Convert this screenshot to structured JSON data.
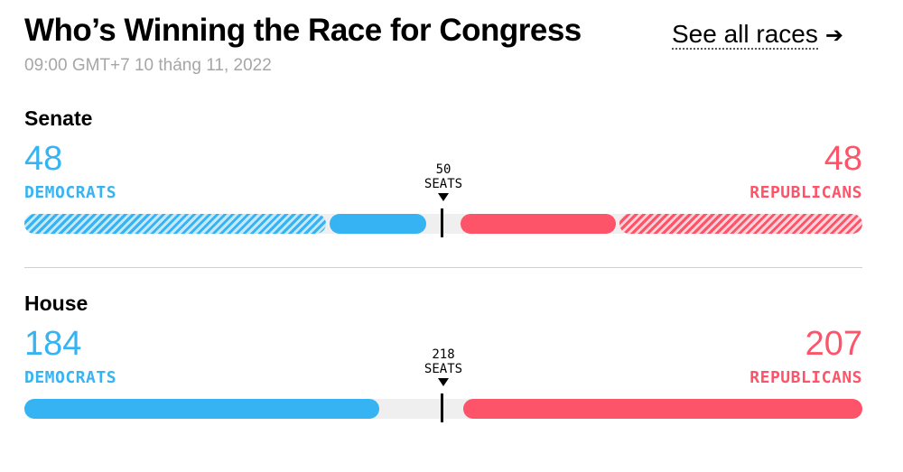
{
  "header": {
    "title": "Who’s Winning the Race for Congress",
    "timestamp": "09:00 GMT+7 10 tháng 11, 2022",
    "see_all_label": "See all races",
    "see_all_arrow": "➔"
  },
  "colors": {
    "democrat": "#36b3f2",
    "republican": "#fd5469",
    "undecided": "#efefef",
    "divider": "#d0d0d0"
  },
  "races": {
    "senate": {
      "chamber": "Senate",
      "total_seats": 100,
      "majority_value": "50",
      "majority_unit": "SEATS",
      "democrats": {
        "count": "48",
        "label": "DEMOCRATS",
        "not_up_for_election": 36,
        "won": 12
      },
      "republicans": {
        "count": "48",
        "label": "REPUBLICANS",
        "not_up_for_election": 29,
        "won": 19
      }
    },
    "house": {
      "chamber": "House",
      "total_seats": 435,
      "majority_value": "218",
      "majority_unit": "SEATS",
      "democrats": {
        "count": "184",
        "label": "DEMOCRATS",
        "not_up_for_election": 0,
        "won": 184
      },
      "republicans": {
        "count": "207",
        "label": "REPUBLICANS",
        "not_up_for_election": 0,
        "won": 207
      }
    }
  }
}
